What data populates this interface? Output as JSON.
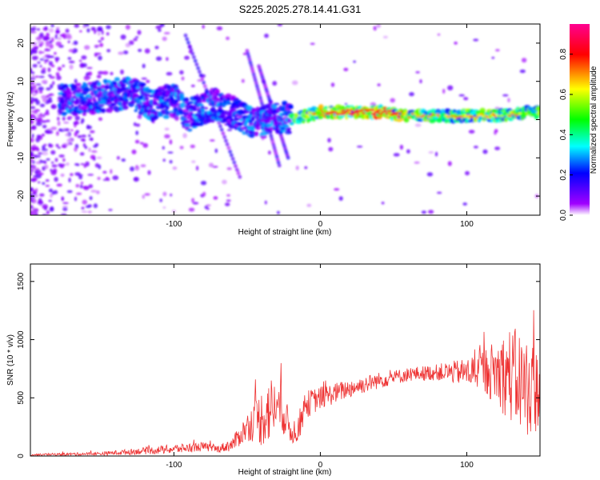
{
  "title": "S225.2025.278.14.41.G31",
  "chart_data": [
    {
      "type": "heatmap",
      "title": "S225.2025.278.14.41.G31",
      "xlabel": "Height of straight line (km)",
      "ylabel": "Frequency (Hz)",
      "xlim": [
        -198,
        150
      ],
      "ylim": [
        -25,
        25
      ],
      "xticks": [
        -100,
        0,
        100
      ],
      "yticks": [
        -20,
        -10,
        0,
        10,
        20
      ],
      "colorbar": {
        "label": "Normalized spectral amplitude",
        "range": [
          0,
          0.95
        ],
        "ticks": [
          0.0,
          0.2,
          0.4,
          0.6,
          0.8
        ],
        "tick_labels": [
          "0.0",
          "0.2",
          "0.4",
          "0.6",
          "0.8"
        ],
        "colormap": [
          "#ffffff",
          "#a000ff",
          "#0000ff",
          "#00ffff",
          "#00ff00",
          "#ffff00",
          "#ff0000",
          "#ff0090"
        ]
      },
      "ridge": {
        "x": [
          -170,
          -150,
          -130,
          -115,
          -100,
          -90,
          -80,
          -70,
          -60,
          -50,
          -40,
          -30,
          -20,
          -10,
          0,
          20,
          40,
          60,
          80,
          100,
          120,
          140,
          150
        ],
        "freq": [
          5,
          6,
          7,
          4,
          5,
          1,
          3,
          4,
          2,
          0,
          -1,
          1,
          0,
          1,
          2,
          2,
          2,
          1,
          1,
          1,
          1,
          2,
          2
        ]
      }
    },
    {
      "type": "line",
      "xlabel": "Height of straight line (km)",
      "ylabel": "SNR (10 * v/v)",
      "xlim": [
        -198,
        150
      ],
      "ylim": [
        0,
        1650
      ],
      "xticks": [
        -100,
        0,
        100
      ],
      "yticks": [
        0,
        500,
        1000,
        1500
      ],
      "color": "#ee3333",
      "envelope": {
        "x": [
          -198,
          -150,
          -100,
          -80,
          -70,
          -60,
          -50,
          -45,
          -40,
          -35,
          -30,
          -25,
          -20,
          -15,
          -10,
          0,
          20,
          40,
          60,
          80,
          100,
          110,
          120,
          130,
          140,
          150
        ],
        "mean": [
          10,
          20,
          60,
          80,
          60,
          100,
          250,
          300,
          330,
          400,
          430,
          380,
          200,
          240,
          440,
          500,
          580,
          650,
          700,
          720,
          720,
          740,
          720,
          700,
          600,
          560
        ],
        "amp": [
          8,
          15,
          40,
          40,
          30,
          60,
          120,
          180,
          250,
          300,
          220,
          200,
          100,
          130,
          120,
          100,
          80,
          70,
          60,
          70,
          120,
          180,
          280,
          420,
          450,
          350
        ]
      }
    }
  ]
}
